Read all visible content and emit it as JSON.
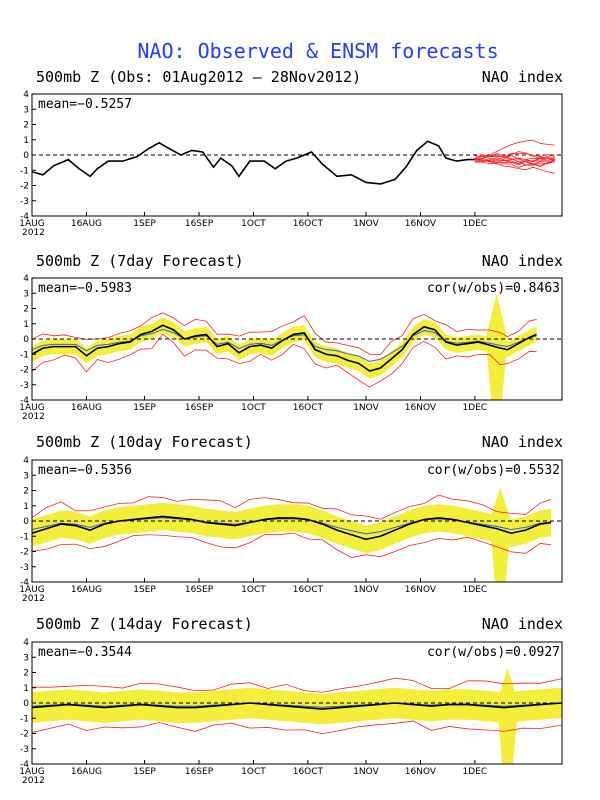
{
  "title": "NAO: Observed & ENSM forecasts",
  "colors": {
    "title": "#1f3fff",
    "observed": "#000000",
    "ensemble_members": "#ff2020",
    "ensemble_mean": "#3a5fcd",
    "spread": "#f2ee3a"
  },
  "x_axis": {
    "ticks": [
      {
        "day": 0,
        "label": "1AUG"
      },
      {
        "day": 15,
        "label": "16AUG"
      },
      {
        "day": 31,
        "label": "1SEP"
      },
      {
        "day": 46,
        "label": "16SEP"
      },
      {
        "day": 61,
        "label": "1OCT"
      },
      {
        "day": 76,
        "label": "16OCT"
      },
      {
        "day": 92,
        "label": "1NOV"
      },
      {
        "day": 107,
        "label": "16NOV"
      },
      {
        "day": 122,
        "label": "1DEC"
      }
    ],
    "year_label": "2012",
    "range_days": [
      0,
      146
    ]
  },
  "y_axis": {
    "ticks": [
      "4",
      "3",
      "2",
      "1",
      "0",
      "-1",
      "-2",
      "-3",
      "-4"
    ],
    "ylim": [
      -4,
      4
    ]
  },
  "chart_data": [
    {
      "type": "line",
      "panel_title": "500mb Z (Obs: 01Aug2012 – 28Nov2012)",
      "right_label": "NAO index",
      "mean_label": "mean=−0.5257",
      "cor_label": "",
      "ylim": [
        -4,
        4
      ],
      "series": [
        {
          "values": [
            [
              0,
              -1.1
            ],
            [
              3,
              -1.3
            ],
            [
              6,
              -0.7
            ],
            [
              10,
              -0.3
            ],
            [
              13,
              -0.9
            ],
            [
              16,
              -1.4
            ],
            [
              18,
              -0.9
            ],
            [
              21,
              -0.4
            ],
            [
              25,
              -0.4
            ],
            [
              29,
              -0.1
            ],
            [
              32,
              0.4
            ],
            [
              35,
              0.8
            ],
            [
              38,
              0.4
            ],
            [
              41,
              0.0
            ],
            [
              44,
              0.3
            ],
            [
              47,
              0.2
            ],
            [
              50,
              -0.8
            ],
            [
              52,
              -0.2
            ],
            [
              55,
              -0.7
            ],
            [
              57,
              -1.4
            ],
            [
              60,
              -0.4
            ],
            [
              64,
              -0.4
            ],
            [
              67,
              -0.9
            ],
            [
              70,
              -0.4
            ],
            [
              73,
              -0.2
            ],
            [
              77,
              0.2
            ],
            [
              80,
              -0.6
            ],
            [
              84,
              -1.4
            ],
            [
              88,
              -1.3
            ],
            [
              92,
              -1.8
            ],
            [
              96,
              -1.9
            ],
            [
              100,
              -1.6
            ],
            [
              103,
              -0.8
            ],
            [
              106,
              0.3
            ],
            [
              109,
              0.9
            ],
            [
              112,
              0.6
            ],
            [
              114,
              -0.2
            ],
            [
              117,
              -0.4
            ],
            [
              120,
              -0.3
            ],
            [
              122,
              -0.3
            ]
          ]
        }
      ],
      "members_start": 122,
      "members_end": 145
    },
    {
      "type": "line",
      "panel_title": "500mb Z (7day Forecast)",
      "right_label": "NAO index",
      "mean_label": "mean=−0.5983",
      "cor_label": "cor(w/obs)=0.8463",
      "ylim": [
        -4,
        4
      ],
      "spread_width": 0.5,
      "spike": {
        "day": 128,
        "upper": 3.0,
        "lower": -4.0
      },
      "series": [
        {
          "values": [
            [
              0,
              -1.0
            ],
            [
              3,
              -0.6
            ],
            [
              6,
              -0.5
            ],
            [
              9,
              -0.5
            ],
            [
              12,
              -0.5
            ],
            [
              15,
              -1.1
            ],
            [
              18,
              -0.6
            ],
            [
              21,
              -0.5
            ],
            [
              24,
              -0.3
            ],
            [
              27,
              -0.2
            ],
            [
              30,
              0.3
            ],
            [
              33,
              0.5
            ],
            [
              36,
              0.9
            ],
            [
              39,
              0.6
            ],
            [
              42,
              0.0
            ],
            [
              45,
              0.2
            ],
            [
              48,
              0.3
            ],
            [
              51,
              -0.5
            ],
            [
              54,
              -0.3
            ],
            [
              57,
              -0.9
            ],
            [
              60,
              -0.5
            ],
            [
              63,
              -0.4
            ],
            [
              66,
              -0.6
            ],
            [
              69,
              -0.1
            ],
            [
              72,
              0.3
            ],
            [
              75,
              0.4
            ],
            [
              78,
              -0.7
            ],
            [
              81,
              -1.0
            ],
            [
              84,
              -1.1
            ],
            [
              87,
              -1.4
            ],
            [
              90,
              -1.6
            ],
            [
              93,
              -2.1
            ],
            [
              96,
              -1.9
            ],
            [
              99,
              -1.3
            ],
            [
              102,
              -0.7
            ],
            [
              105,
              0.3
            ],
            [
              108,
              0.8
            ],
            [
              111,
              0.6
            ],
            [
              114,
              -0.2
            ],
            [
              117,
              -0.4
            ],
            [
              120,
              -0.3
            ],
            [
              123,
              -0.2
            ],
            [
              126,
              -0.4
            ],
            [
              129,
              -0.6
            ],
            [
              131,
              -0.7
            ],
            [
              134,
              -0.3
            ],
            [
              137,
              0.1
            ],
            [
              139,
              0.3
            ]
          ]
        }
      ]
    },
    {
      "type": "line",
      "panel_title": "500mb Z (10day Forecast)",
      "right_label": "NAO index",
      "mean_label": "mean=−0.5356",
      "cor_label": "cor(w/obs)=0.5532",
      "ylim": [
        -4,
        4
      ],
      "spread_width": 0.9,
      "spike": {
        "day": 129,
        "upper": 2.2,
        "lower": -4.0
      },
      "series": [
        {
          "values": [
            [
              0,
              -0.8
            ],
            [
              4,
              -0.5
            ],
            [
              8,
              -0.2
            ],
            [
              12,
              -0.3
            ],
            [
              16,
              -0.6
            ],
            [
              20,
              -0.2
            ],
            [
              24,
              0.0
            ],
            [
              28,
              0.1
            ],
            [
              32,
              0.2
            ],
            [
              36,
              0.3
            ],
            [
              40,
              0.2
            ],
            [
              44,
              0.1
            ],
            [
              48,
              -0.1
            ],
            [
              52,
              -0.2
            ],
            [
              56,
              -0.3
            ],
            [
              60,
              -0.1
            ],
            [
              64,
              0.1
            ],
            [
              68,
              0.2
            ],
            [
              72,
              0.2
            ],
            [
              76,
              0.1
            ],
            [
              80,
              -0.2
            ],
            [
              84,
              -0.6
            ],
            [
              88,
              -0.9
            ],
            [
              92,
              -1.2
            ],
            [
              96,
              -1.0
            ],
            [
              100,
              -0.6
            ],
            [
              104,
              -0.2
            ],
            [
              108,
              0.1
            ],
            [
              112,
              0.2
            ],
            [
              116,
              0.1
            ],
            [
              120,
              -0.1
            ],
            [
              124,
              -0.3
            ],
            [
              128,
              -0.5
            ],
            [
              132,
              -0.8
            ],
            [
              136,
              -0.6
            ],
            [
              140,
              -0.2
            ],
            [
              143,
              -0.1
            ]
          ]
        }
      ]
    },
    {
      "type": "line",
      "panel_title": "500mb Z (14day Forecast)",
      "right_label": "NAO index",
      "mean_label": "mean=−0.3544",
      "cor_label": "cor(w/obs)=0.0927",
      "ylim": [
        -4,
        4
      ],
      "spread_width": 1.0,
      "spike": {
        "day": 131,
        "upper": 2.3,
        "lower": -4.0
      },
      "series": [
        {
          "values": [
            [
              0,
              -0.3
            ],
            [
              5,
              -0.2
            ],
            [
              10,
              -0.1
            ],
            [
              15,
              -0.2
            ],
            [
              20,
              -0.3
            ],
            [
              25,
              -0.2
            ],
            [
              30,
              -0.1
            ],
            [
              35,
              -0.2
            ],
            [
              40,
              -0.3
            ],
            [
              45,
              -0.3
            ],
            [
              50,
              -0.2
            ],
            [
              55,
              -0.1
            ],
            [
              60,
              0.0
            ],
            [
              65,
              -0.1
            ],
            [
              70,
              -0.2
            ],
            [
              75,
              -0.3
            ],
            [
              80,
              -0.4
            ],
            [
              85,
              -0.3
            ],
            [
              90,
              -0.2
            ],
            [
              95,
              -0.1
            ],
            [
              100,
              0.0
            ],
            [
              105,
              -0.1
            ],
            [
              110,
              -0.2
            ],
            [
              115,
              -0.1
            ],
            [
              120,
              -0.1
            ],
            [
              125,
              -0.2
            ],
            [
              130,
              -0.3
            ],
            [
              135,
              -0.2
            ],
            [
              140,
              -0.1
            ],
            [
              146,
              0.0
            ]
          ]
        }
      ]
    }
  ]
}
